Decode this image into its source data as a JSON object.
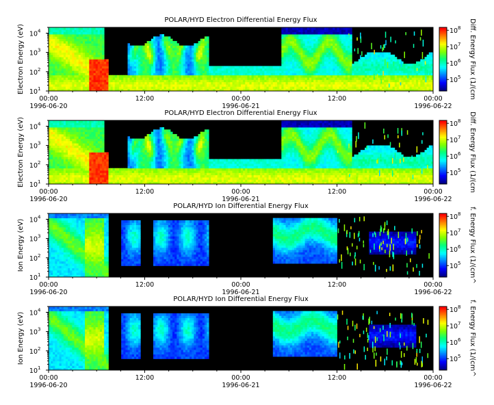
{
  "chart_data": [
    {
      "type": "heatmap",
      "title": "POLAR/HYD  Electron Differential Energy Flux",
      "ylabel": "Electron Energy (eV)",
      "colorbar_label": "Diff. Energy Flux (1/(cm",
      "y_scale": "log",
      "ylim": [
        10,
        20000
      ],
      "y_ticks": [
        "10",
        "10",
        "10",
        "10"
      ],
      "y_tick_exponents": [
        "1",
        "2",
        "3",
        "4"
      ],
      "colorbar_scale": "log",
      "colorbar_range": [
        20000,
        150000000
      ],
      "colorbar_ticks": [
        "10",
        "10",
        "10",
        "10"
      ],
      "colorbar_tick_exponents": [
        "5",
        "6",
        "7",
        "8"
      ],
      "x_tick_labels": [
        "00:00",
        "12:00",
        "00:00",
        "12:00",
        "00:00"
      ],
      "x_date_labels": [
        "1996-06-20",
        "1996-06-21",
        "1996-06-22"
      ],
      "xlim_hours": [
        0,
        48
      ]
    },
    {
      "type": "heatmap",
      "title": "POLAR/HYD  Electron Differential Energy Flux",
      "ylabel": "Electron Energy (eV)",
      "colorbar_label": "Diff. Energy Flux (1/(cm",
      "y_scale": "log",
      "ylim": [
        10,
        20000
      ],
      "y_ticks": [
        "10",
        "10",
        "10",
        "10"
      ],
      "y_tick_exponents": [
        "1",
        "2",
        "3",
        "4"
      ],
      "colorbar_scale": "log",
      "colorbar_range": [
        20000,
        150000000
      ],
      "colorbar_ticks": [
        "10",
        "10",
        "10",
        "10"
      ],
      "colorbar_tick_exponents": [
        "5",
        "6",
        "7",
        "8"
      ],
      "x_tick_labels": [
        "00:00",
        "12:00",
        "00:00",
        "12:00",
        "00:00"
      ],
      "x_date_labels": [
        "1996-06-20",
        "1996-06-21",
        "1996-06-22"
      ],
      "xlim_hours": [
        0,
        48
      ]
    },
    {
      "type": "heatmap",
      "title": "POLAR/HYD  Ion Differential Energy Flux",
      "ylabel": "Ion Energy (eV)",
      "colorbar_label": "f. Energy Flux (1/(cm^",
      "y_scale": "log",
      "ylim": [
        10,
        20000
      ],
      "y_ticks": [
        "10",
        "10",
        "10",
        "10"
      ],
      "y_tick_exponents": [
        "1",
        "2",
        "3",
        "4"
      ],
      "colorbar_scale": "log",
      "colorbar_range": [
        20000,
        150000000
      ],
      "colorbar_ticks": [
        "10",
        "10",
        "10",
        "10"
      ],
      "colorbar_tick_exponents": [
        "5",
        "6",
        "7",
        "8"
      ],
      "x_tick_labels": [
        "00:00",
        "12:00",
        "00:00",
        "12:00",
        "00:00"
      ],
      "x_date_labels": [
        "1996-06-20",
        "1996-06-21",
        "1996-06-22"
      ],
      "xlim_hours": [
        0,
        48
      ]
    },
    {
      "type": "heatmap",
      "title": "POLAR/HYD  Ion Differential Energy Flux",
      "ylabel": "Ion Energy (eV)",
      "colorbar_label": "f. Energy Flux (1/(cm^",
      "y_scale": "log",
      "ylim": [
        10,
        20000
      ],
      "y_ticks": [
        "10",
        "10",
        "10",
        "10"
      ],
      "y_tick_exponents": [
        "1",
        "2",
        "3",
        "4"
      ],
      "colorbar_scale": "log",
      "colorbar_range": [
        20000,
        150000000
      ],
      "colorbar_ticks": [
        "10",
        "10",
        "10",
        "10"
      ],
      "colorbar_tick_exponents": [
        "5",
        "6",
        "7",
        "8"
      ],
      "x_tick_labels": [
        "00:00",
        "12:00",
        "00:00",
        "12:00",
        "00:00"
      ],
      "x_date_labels": [
        "1996-06-20",
        "1996-06-21",
        "1996-06-22"
      ],
      "xlim_hours": [
        0,
        48
      ]
    }
  ],
  "colors": {
    "background": "#000000",
    "colormap": [
      "#000080",
      "#0000ff",
      "#0080ff",
      "#00ffff",
      "#00ff80",
      "#80ff00",
      "#ffff00",
      "#ff8000",
      "#ff0000"
    ]
  }
}
